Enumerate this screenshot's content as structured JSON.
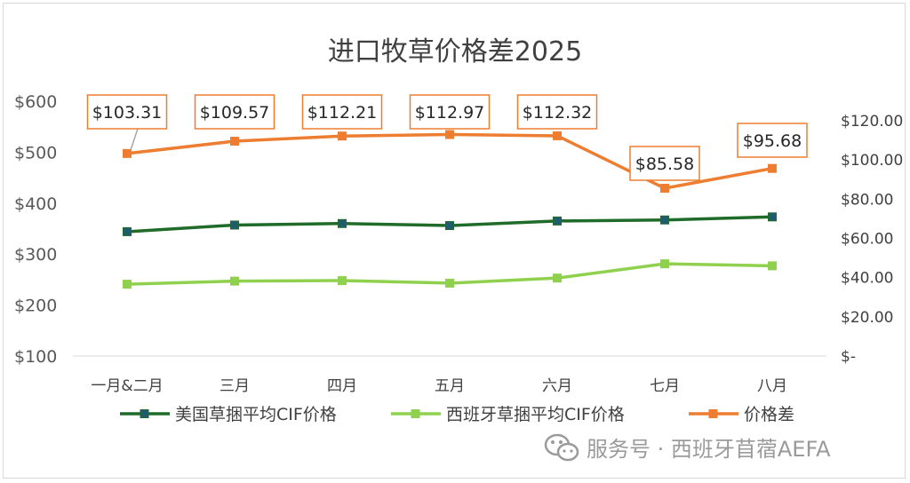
{
  "chart_data": {
    "type": "line",
    "title": "进口牧草价格差2025",
    "categories": [
      "一月&二月",
      "三月",
      "四月",
      "五月",
      "六月",
      "七月",
      "八月"
    ],
    "y_left": {
      "ticks": [
        "$100",
        "$200",
        "$300",
        "$400",
        "$500",
        "$600"
      ],
      "range": [
        100,
        600
      ]
    },
    "y_right": {
      "ticks": [
        "$-",
        "$20.00",
        "$40.00",
        "$60.00",
        "$80.00",
        "$100.00",
        "$120.00"
      ],
      "range": [
        0,
        120
      ]
    },
    "series": [
      {
        "name": "美国草捆平均CIF价格",
        "axis": "left",
        "color": "#1e6b2a",
        "values": [
          344,
          357,
          360,
          356,
          365,
          367,
          373
        ]
      },
      {
        "name": "西班牙草捆平均CIF价格",
        "axis": "left",
        "color": "#8fd14f",
        "values": [
          241,
          247,
          248,
          243,
          253,
          281,
          277
        ]
      },
      {
        "name": "价格差",
        "axis": "right",
        "color": "#ed7d31",
        "values": [
          103.31,
          109.57,
          112.21,
          112.97,
          112.32,
          85.58,
          95.68
        ],
        "data_labels": [
          "$103.31",
          "$109.57",
          "$112.21",
          "$112.97",
          "$112.32",
          "$85.58",
          "$95.68"
        ]
      }
    ],
    "grid": false,
    "legend": "bottom"
  },
  "watermark": "服务号 · 西班牙苜蓿AEFA"
}
